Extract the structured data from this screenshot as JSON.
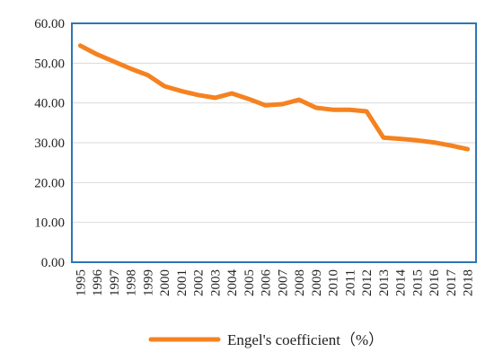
{
  "chart_data": {
    "type": "line",
    "title": "",
    "xlabel": "",
    "ylabel": "",
    "ylim": [
      0,
      60
    ],
    "y_ticks": [
      "0.00",
      "10.00",
      "20.00",
      "30.00",
      "40.00",
      "50.00",
      "60.00"
    ],
    "y_tick_values": [
      0,
      10,
      20,
      30,
      40,
      50,
      60
    ],
    "grid": "horizontal",
    "frame_color": "#2E75B6",
    "legend_position": "bottom",
    "categories": [
      "1995",
      "1996",
      "1997",
      "1998",
      "1999",
      "2000",
      "2001",
      "2002",
      "2003",
      "2004",
      "2005",
      "2006",
      "2007",
      "2008",
      "2009",
      "2010",
      "2011",
      "2012",
      "2013",
      "2014",
      "2015",
      "2016",
      "2017",
      "2018"
    ],
    "series": [
      {
        "name": "Engel's coefficient（%）",
        "color": "#F58220",
        "values": [
          54.4,
          52.2,
          50.4,
          48.6,
          47.0,
          44.2,
          43.0,
          42.0,
          41.3,
          42.4,
          41.0,
          39.4,
          39.7,
          40.8,
          38.8,
          38.3,
          38.3,
          37.9,
          31.3,
          31.0,
          30.6,
          30.1,
          29.3,
          28.4
        ]
      }
    ]
  }
}
